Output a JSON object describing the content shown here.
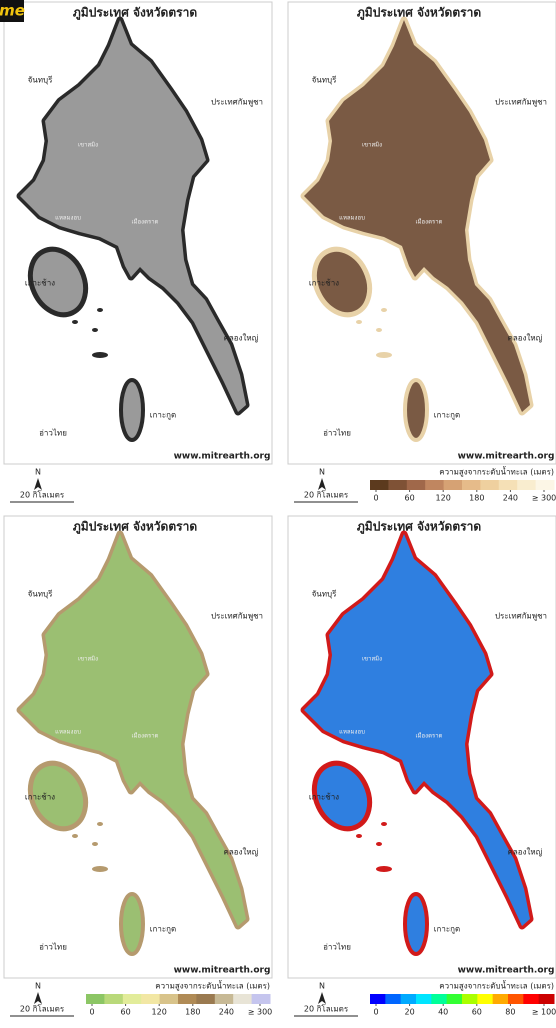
{
  "logo": "me",
  "panels": [
    {
      "title": "ภูมิประเทศ จังหวัดตราด",
      "labels": [
        "จันทบุรี",
        "ประเทศกัมพูชา",
        "เกาะช้าง",
        "คลองใหญ่",
        "เกาะกูด",
        "อ่าวไทย",
        "เขาสมิง",
        "แหลมงอบ",
        "เมืองตราด"
      ],
      "website": "www.mitrearth.org",
      "north": "N",
      "scale": "20 กิโลเมตร",
      "land_color": "#9a9a9a",
      "edge_color": "#2a2a2a"
    },
    {
      "title": "ภูมิประเทศ จังหวัดตราด",
      "labels": [
        "จันทบุรี",
        "ประเทศกัมพูชา",
        "เกาะช้าง",
        "คลองใหญ่",
        "เกาะกูด",
        "อ่าวไทย",
        "เขาสมิง",
        "แหลมงอบ",
        "เมืองตราด"
      ],
      "website": "www.mitrearth.org",
      "north": "N",
      "scale": "20 กิโลเมตร",
      "land_color": "#7a5a44",
      "edge_color": "#e8d2a8",
      "legend": {
        "title": "ความสูงจากระดับน้ำทะเล (เมตร)",
        "ticks": [
          0,
          60,
          120,
          180,
          240,
          {
            "value": 300,
            "label": "≥ 300"
          }
        ],
        "colors": [
          "#5c3a1e",
          "#7f5236",
          "#a0684a",
          "#c08660",
          "#d6a274",
          "#e6bb8a",
          "#efd09f",
          "#f5e0b6",
          "#f9edcf",
          "#fcf6e6"
        ]
      }
    },
    {
      "title": "ภูมิประเทศ จังหวัดตราด",
      "labels": [
        "จันทบุรี",
        "ประเทศกัมพูชา",
        "เกาะช้าง",
        "คลองใหญ่",
        "เกาะกูด",
        "อ่าวไทย",
        "เขาสมิง",
        "แหลมงอบ",
        "เมืองตราด"
      ],
      "website": "www.mitrearth.org",
      "north": "N",
      "scale": "20 กิโลเมตร",
      "land_color": "#9bbf72",
      "edge_color": "#b59a6e",
      "legend": {
        "title": "ความสูงจากระดับน้ำทะเล (เมตร)",
        "ticks": [
          0,
          60,
          120,
          180,
          240,
          {
            "value": 300,
            "label": "≥ 300"
          }
        ],
        "colors": [
          "#8cc665",
          "#b9d97a",
          "#e2ec9a",
          "#f2e7a4",
          "#d8c38a",
          "#b08b56",
          "#9a7a50",
          "#c7b995",
          "#e8e4d6",
          "#c5c5ee"
        ]
      }
    },
    {
      "title": "ภูมิประเทศ จังหวัดตราด",
      "labels": [
        "จันทบุรี",
        "ประเทศกัมพูชา",
        "เกาะช้าง",
        "คลองใหญ่",
        "เกาะกูด",
        "อ่าวไทย",
        "เขาสมิง",
        "แหลมงอบ",
        "เมืองตราด"
      ],
      "website": "www.mitrearth.org",
      "north": "N",
      "scale": "20 กิโลเมตร",
      "land_color": "#2f7fe0",
      "edge_color": "#d11a1a",
      "legend": {
        "title": "ความสูงจากระดับน้ำทะเล (เมตร)",
        "ticks": [
          0,
          20,
          40,
          60,
          80,
          {
            "value": 100,
            "label": "≥ 100"
          }
        ],
        "colors": [
          "#0000ff",
          "#0066ff",
          "#00aaff",
          "#00e5ff",
          "#00ff99",
          "#33ff33",
          "#aaff00",
          "#ffff00",
          "#ffaa00",
          "#ff5500",
          "#ff0000",
          "#cc0000"
        ]
      }
    }
  ]
}
